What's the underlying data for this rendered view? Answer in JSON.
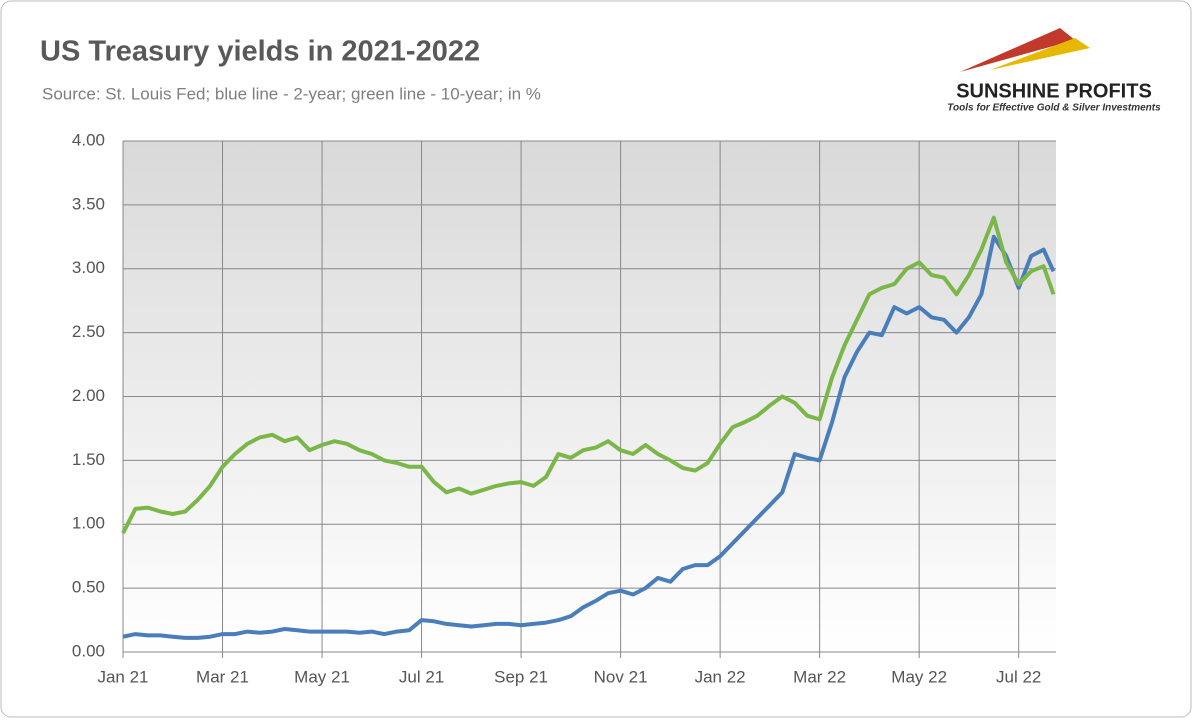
{
  "chart_data": {
    "type": "line",
    "title": "US Treasury yields in 2021-2022",
    "subtitle": "Source: St. Louis Fed; blue line - 2-year; green line - 10-year; in %",
    "logo": {
      "name": "SUNSHINE PROFITS",
      "tagline": "Tools for Effective Gold & Silver Investments"
    },
    "x": [
      0,
      0.25,
      0.5,
      0.75,
      1,
      1.25,
      1.5,
      1.75,
      2,
      2.25,
      2.5,
      2.75,
      3,
      3.25,
      3.5,
      3.75,
      4,
      4.25,
      4.5,
      4.75,
      5,
      5.25,
      5.5,
      5.75,
      6,
      6.25,
      6.5,
      6.75,
      7,
      7.25,
      7.5,
      7.75,
      8,
      8.25,
      8.5,
      8.75,
      9,
      9.25,
      9.5,
      9.75,
      10,
      10.25,
      10.5,
      10.75,
      11,
      11.25,
      11.5,
      11.75,
      12,
      12.25,
      12.5,
      12.75,
      13,
      13.25,
      13.5,
      13.75,
      14,
      14.25,
      14.5,
      14.75,
      15,
      15.25,
      15.5,
      15.75,
      16,
      16.25,
      16.5,
      16.75,
      17,
      17.25,
      17.5,
      17.75,
      18,
      18.25,
      18.5,
      18.7
    ],
    "series": [
      {
        "name": "2-year",
        "color": "#4a7ebb",
        "values": [
          0.12,
          0.14,
          0.13,
          0.13,
          0.12,
          0.11,
          0.11,
          0.12,
          0.14,
          0.14,
          0.16,
          0.15,
          0.16,
          0.18,
          0.17,
          0.16,
          0.16,
          0.16,
          0.16,
          0.15,
          0.16,
          0.14,
          0.16,
          0.17,
          0.25,
          0.24,
          0.22,
          0.21,
          0.2,
          0.21,
          0.22,
          0.22,
          0.21,
          0.22,
          0.23,
          0.25,
          0.28,
          0.35,
          0.4,
          0.46,
          0.48,
          0.45,
          0.5,
          0.58,
          0.55,
          0.65,
          0.68,
          0.68,
          0.75,
          0.85,
          0.95,
          1.05,
          1.15,
          1.25,
          1.55,
          1.52,
          1.5,
          1.8,
          2.15,
          2.35,
          2.5,
          2.48,
          2.7,
          2.65,
          2.7,
          2.62,
          2.6,
          2.5,
          2.62,
          2.8,
          3.25,
          3.1,
          2.85,
          3.1,
          3.15,
          2.98
        ]
      },
      {
        "name": "10-year",
        "color": "#7ab648",
        "values": [
          0.93,
          1.12,
          1.13,
          1.1,
          1.08,
          1.1,
          1.19,
          1.3,
          1.45,
          1.55,
          1.63,
          1.68,
          1.7,
          1.65,
          1.68,
          1.58,
          1.62,
          1.65,
          1.63,
          1.58,
          1.55,
          1.5,
          1.48,
          1.45,
          1.45,
          1.33,
          1.25,
          1.28,
          1.24,
          1.27,
          1.3,
          1.32,
          1.33,
          1.3,
          1.37,
          1.55,
          1.52,
          1.58,
          1.6,
          1.65,
          1.58,
          1.55,
          1.62,
          1.55,
          1.5,
          1.44,
          1.42,
          1.48,
          1.63,
          1.76,
          1.8,
          1.85,
          1.93,
          2.0,
          1.95,
          1.85,
          1.82,
          2.15,
          2.4,
          2.6,
          2.8,
          2.85,
          2.88,
          3.0,
          3.05,
          2.95,
          2.93,
          2.8,
          2.95,
          3.15,
          3.4,
          3.05,
          2.88,
          2.98,
          3.02,
          2.8
        ]
      }
    ],
    "xlim": [
      0,
      18.75
    ],
    "xticks": [
      {
        "value": 0,
        "label": "Jan 21"
      },
      {
        "value": 2,
        "label": "Mar 21"
      },
      {
        "value": 4,
        "label": "May 21"
      },
      {
        "value": 6,
        "label": "Jul 21"
      },
      {
        "value": 8,
        "label": "Sep 21"
      },
      {
        "value": 10,
        "label": "Nov 21"
      },
      {
        "value": 12,
        "label": "Jan 22"
      },
      {
        "value": 14,
        "label": "Mar 22"
      },
      {
        "value": 16,
        "label": "May 22"
      },
      {
        "value": 18,
        "label": "Jul 22"
      }
    ],
    "ylim": [
      0,
      4
    ],
    "yticks": [
      {
        "value": 0,
        "label": "0.00"
      },
      {
        "value": 0.5,
        "label": "0.50"
      },
      {
        "value": 1,
        "label": "1.00"
      },
      {
        "value": 1.5,
        "label": "1.50"
      },
      {
        "value": 2,
        "label": "2.00"
      },
      {
        "value": 2.5,
        "label": "2.50"
      },
      {
        "value": 3,
        "label": "3.00"
      },
      {
        "value": 3.5,
        "label": "3.50"
      },
      {
        "value": 4,
        "label": "4.00"
      }
    ],
    "grid": true
  }
}
